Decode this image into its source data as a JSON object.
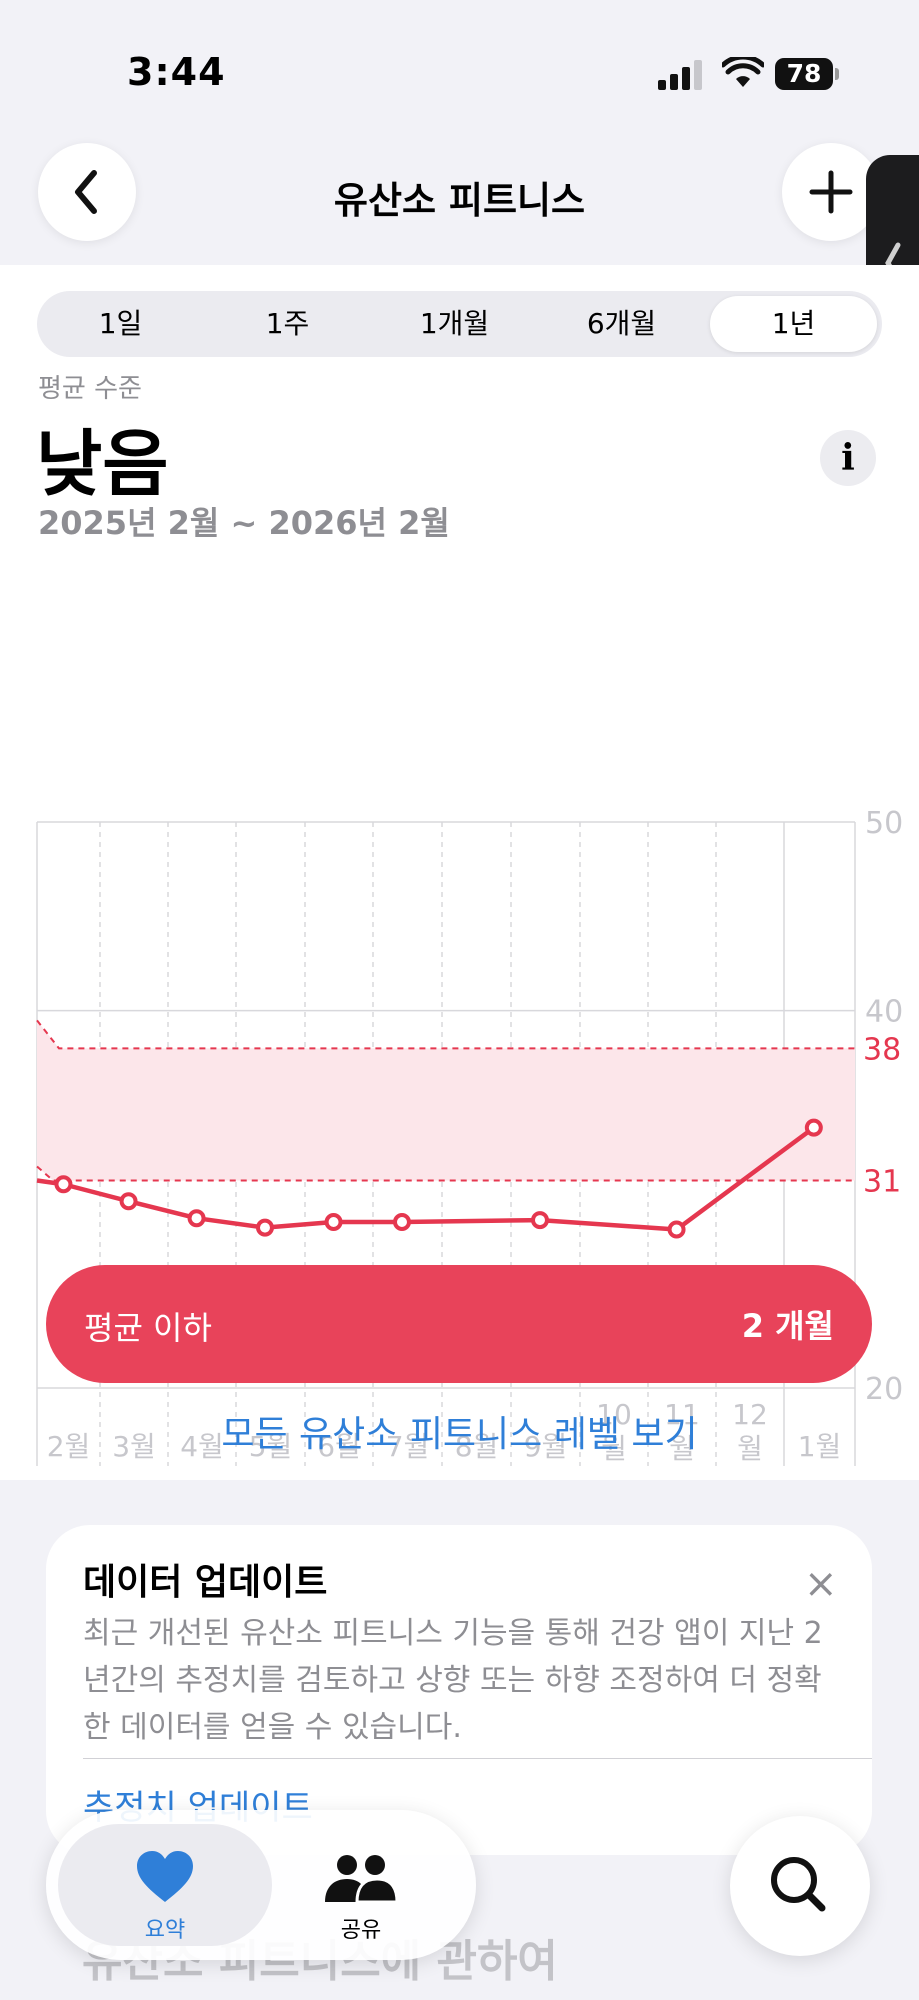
{
  "status_bar": {
    "time": "3:44",
    "battery": "78"
  },
  "nav": {
    "title": "유산소 피트니스"
  },
  "segments": [
    "1일",
    "1주",
    "1개월",
    "6개월",
    "1년"
  ],
  "selected_segment": "1년",
  "metric": {
    "label": "평균 수준",
    "value": "낮음",
    "date_range": "2025년 2월 ~ 2026년 2월",
    "info": "i"
  },
  "chart_data": {
    "type": "line",
    "x": [
      "2월",
      "3월",
      "4월",
      "5월",
      "6월",
      "7월",
      "8월",
      "9월",
      "10월",
      "11월",
      "12월",
      "1월"
    ],
    "x_tick_labels": [
      [
        "2월"
      ],
      [
        "3월"
      ],
      [
        "4월"
      ],
      [
        "5월"
      ],
      [
        "6월"
      ],
      [
        "7월"
      ],
      [
        "8월"
      ],
      [
        "9월"
      ],
      [
        "10",
        "월"
      ],
      [
        "11",
        "월"
      ],
      [
        "12",
        "월"
      ],
      [
        "1월"
      ]
    ],
    "series": [
      {
        "values": [
          30.8,
          29.9,
          29.0,
          28.5,
          28.8,
          28.8,
          null,
          28.9,
          null,
          28.4,
          null,
          33.8
        ]
      }
    ],
    "series_start": 31.0,
    "y_ticks": [
      50,
      40,
      20
    ],
    "ylim": [
      20,
      50
    ],
    "band": {
      "low": 31,
      "high": 38,
      "low_label": "31",
      "high_label": "38"
    },
    "colors": {
      "line": "#e5374f",
      "band": "#fce6ea",
      "grid": "#d8d8dc"
    }
  },
  "below_average": {
    "label": "평균 이하",
    "count": "2 개월"
  },
  "levels_link": "모든 유산소 피트니스 레벨 보기",
  "update_card": {
    "title": "데이터 업데이트",
    "close": "×",
    "body": "최근 개선된 유산소 피트니스 기능을 통해 건강 앱이 지난 2년간의 추정치를 검토하고 상향 또는 하향 조정하여 더 정확한 데이터를 얻을 수 있습니다.",
    "link": "추정치 업데이트"
  },
  "about_heading": "유산소 피트니스에 관하여",
  "tab_bar": {
    "summary": "요약",
    "share": "공유"
  },
  "icons": [
    "chevron-left-icon",
    "plus-icon",
    "heart-icon",
    "people-icon",
    "search-icon",
    "signal-icon",
    "wifi-icon"
  ]
}
